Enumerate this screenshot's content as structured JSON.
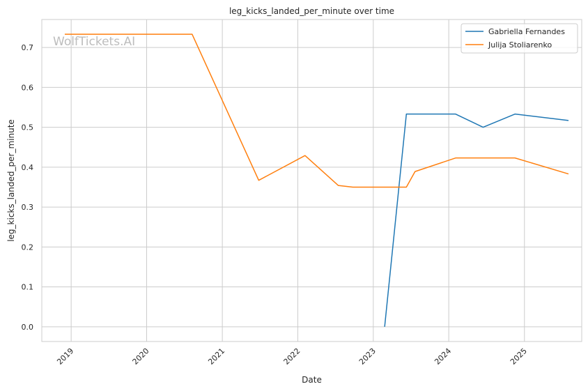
{
  "chart_data": {
    "type": "line",
    "title": "leg_kicks_landed_per_minute over time",
    "xlabel": "Date",
    "ylabel": "leg_kicks_landed_per_minute",
    "watermark": "WolfTickets.AI",
    "x_ticks": [
      "2019",
      "2020",
      "2021",
      "2022",
      "2023",
      "2024",
      "2025"
    ],
    "y_ticks": [
      "0.0",
      "0.1",
      "0.2",
      "0.3",
      "0.4",
      "0.5",
      "0.6",
      "0.7"
    ],
    "xlim": [
      "2018-08-12",
      "2025-10-05"
    ],
    "ylim": [
      -0.037,
      0.77
    ],
    "grid": true,
    "legend_position": "top-right",
    "series": [
      {
        "name": "Gabriella Fernandes",
        "color": "#1f77b4",
        "points": [
          {
            "x": "2023-02-25",
            "y": 0.0
          },
          {
            "x": "2023-06-10",
            "y": 0.533
          },
          {
            "x": "2024-02-03",
            "y": 0.533
          },
          {
            "x": "2024-06-15",
            "y": 0.5
          },
          {
            "x": "2024-11-16",
            "y": 0.533
          },
          {
            "x": "2025-08-02",
            "y": 0.517
          }
        ]
      },
      {
        "name": "Julija Stoliarenko",
        "color": "#ff7f0e",
        "points": [
          {
            "x": "2018-12-01",
            "y": 0.733
          },
          {
            "x": "2020-08-08",
            "y": 0.733
          },
          {
            "x": "2021-06-26",
            "y": 0.367
          },
          {
            "x": "2022-02-05",
            "y": 0.429
          },
          {
            "x": "2022-07-16",
            "y": 0.354
          },
          {
            "x": "2022-09-24",
            "y": 0.35
          },
          {
            "x": "2023-06-10",
            "y": 0.35
          },
          {
            "x": "2023-07-22",
            "y": 0.389
          },
          {
            "x": "2024-02-03",
            "y": 0.423
          },
          {
            "x": "2024-11-16",
            "y": 0.423
          },
          {
            "x": "2025-08-02",
            "y": 0.383
          }
        ]
      }
    ]
  }
}
